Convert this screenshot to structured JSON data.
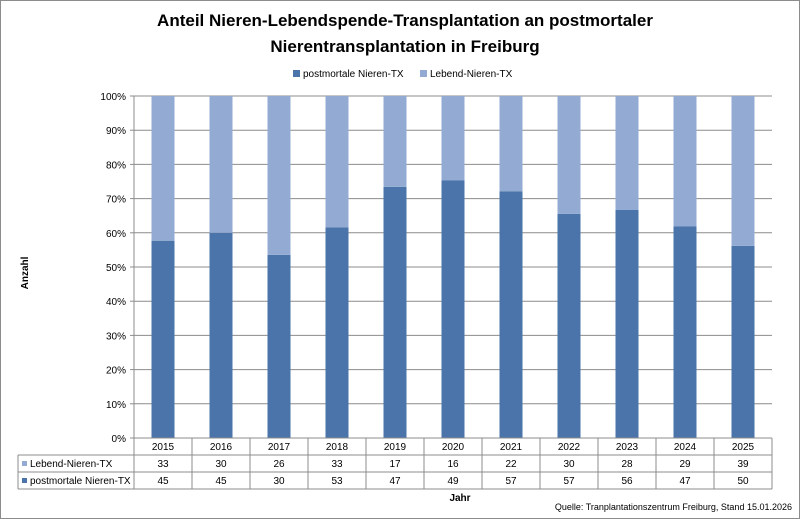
{
  "chart_data": {
    "type": "bar",
    "stacked": true,
    "normalized_100_percent": true,
    "title_lines": [
      "Anteil Nieren-Lebendspende-Transplantation an postmortaler",
      "Nierentransplantation in Freiburg"
    ],
    "xlabel": "Jahr",
    "ylabel": "Anzahl",
    "ylim": [
      0,
      100
    ],
    "yticks": [
      "0%",
      "10%",
      "20%",
      "30%",
      "40%",
      "50%",
      "60%",
      "70%",
      "80%",
      "90%",
      "100%"
    ],
    "categories": [
      "2015",
      "2016",
      "2017",
      "2018",
      "2019",
      "2020",
      "2021",
      "2022",
      "2023",
      "2024",
      "2025"
    ],
    "series": [
      {
        "name": "postmortale Nieren-TX",
        "color": "#4a74aa",
        "values": [
          45,
          45,
          30,
          53,
          47,
          49,
          57,
          57,
          56,
          47,
          50
        ]
      },
      {
        "name": "Lebend-Nieren-TX",
        "color": "#93abd3",
        "values": [
          33,
          30,
          26,
          33,
          17,
          16,
          22,
          30,
          28,
          29,
          39
        ]
      }
    ],
    "legend_position": "top",
    "data_table": true,
    "source": "Quelle: Tranplantationszentrum Freiburg, Stand 15.01.2026"
  }
}
